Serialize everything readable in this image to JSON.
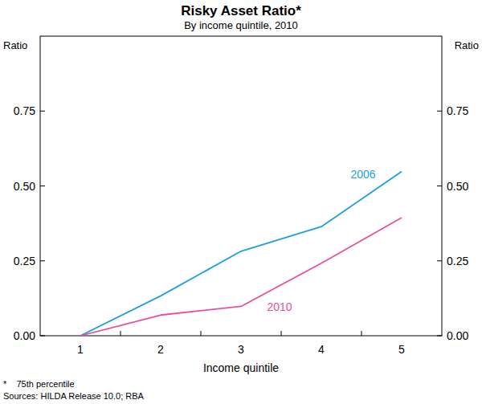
{
  "chart_data": {
    "type": "line",
    "title": "Risky Asset Ratio*",
    "subtitle": "By income quintile, 2010",
    "y_label": "Ratio",
    "x_label": "Income quintile",
    "notes": [
      "*    75th percentile",
      "Sources: HILDA Release 10.0; RBA"
    ],
    "categories": [
      "1",
      "2",
      "3",
      "4",
      "5"
    ],
    "series": [
      {
        "name": "2006",
        "color": "#1ea0dc",
        "values": [
          0,
          0.133,
          0.282,
          0.364,
          0.548
        ]
      },
      {
        "name": "2010",
        "color": "#e6509b",
        "values": [
          0,
          0.069,
          0.098,
          0.242,
          0.394
        ]
      }
    ],
    "ylim": [
      0,
      1
    ],
    "yticks": [
      {
        "value": 0,
        "label": "0.00"
      },
      {
        "value": 0.25,
        "label": "0.25"
      },
      {
        "value": 0.5,
        "label": "0.50"
      },
      {
        "value": 0.75,
        "label": "0.75"
      }
    ],
    "grid": false
  }
}
